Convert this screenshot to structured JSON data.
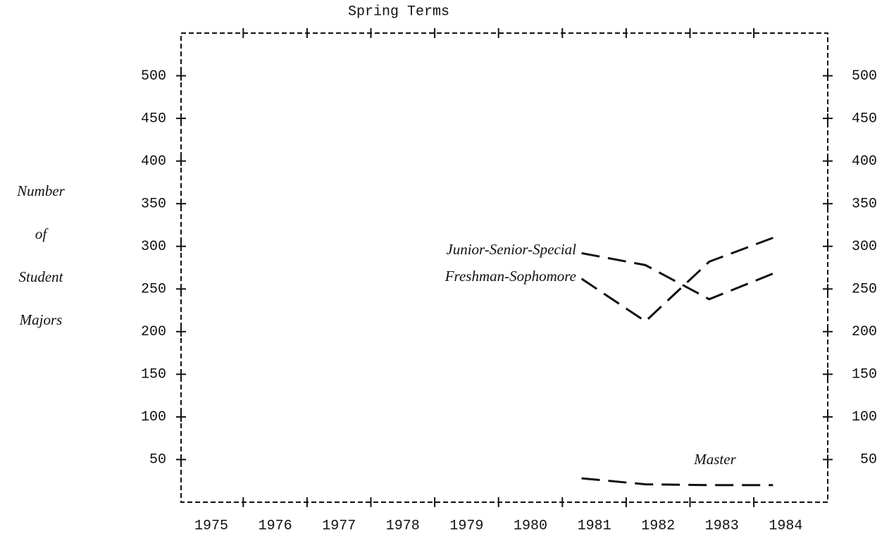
{
  "chart_data": {
    "type": "line",
    "title": "Spring Terms",
    "ylabel": [
      "Number",
      "of",
      "Student",
      "Majors"
    ],
    "categories": [
      "1975",
      "1976",
      "1977",
      "1978",
      "1979",
      "1980",
      "1981",
      "1982",
      "1983",
      "1984"
    ],
    "series": [
      {
        "name": "Junior-Senior-Special",
        "color": "#111111",
        "values": [
          null,
          null,
          null,
          null,
          null,
          null,
          292,
          278,
          238,
          268
        ]
      },
      {
        "name": "Freshman-Sophomore",
        "color": "#111111",
        "values": [
          null,
          null,
          null,
          null,
          null,
          null,
          262,
          212,
          282,
          310
        ]
      },
      {
        "name": "Master",
        "color": "#111111",
        "values": [
          null,
          null,
          null,
          null,
          null,
          null,
          28,
          21,
          20,
          20
        ]
      }
    ],
    "ylim": [
      0,
      550
    ],
    "yticks": [
      50,
      100,
      150,
      200,
      250,
      300,
      350,
      400,
      450,
      500
    ]
  }
}
